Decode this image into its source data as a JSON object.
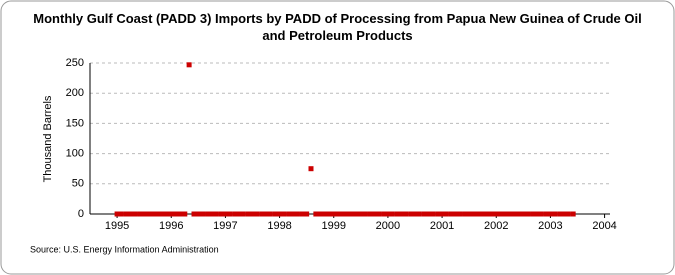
{
  "chart_data": {
    "type": "scatter",
    "title": "Monthly Gulf Coast (PADD 3) Imports by PADD of Processing from Papua New Guinea of Crude Oil and Petroleum Products",
    "y_label": "Thousand Barrels",
    "source": "Source: U.S. Energy Information Administration",
    "series": [
      {
        "name": "Papua New Guinea",
        "color": "#cc0000",
        "x": [
          1995,
          1995.08,
          1995.17,
          1995.25,
          1995.33,
          1995.42,
          1995.5,
          1995.58,
          1995.67,
          1995.75,
          1995.83,
          1995.92,
          1996,
          1996.08,
          1996.17,
          1996.25,
          1996.33,
          1996.42,
          1996.5,
          1996.58,
          1996.67,
          1996.75,
          1996.83,
          1996.92,
          1997,
          1997.08,
          1997.17,
          1997.25,
          1997.33,
          1997.42,
          1997.5,
          1997.58,
          1997.67,
          1997.75,
          1997.83,
          1997.92,
          1998,
          1998.08,
          1998.17,
          1998.25,
          1998.33,
          1998.42,
          1998.5,
          1998.58,
          1998.67,
          1998.75,
          1998.83,
          1998.92,
          1999,
          1999.08,
          1999.17,
          1999.25,
          1999.33,
          1999.42,
          1999.5,
          1999.58,
          1999.67,
          1999.75,
          1999.83,
          1999.92,
          2000,
          2000.08,
          2000.17,
          2000.25,
          2000.33,
          2000.42,
          2000.5,
          2000.58,
          2000.67,
          2000.75,
          2000.83,
          2000.92,
          2001,
          2001.08,
          2001.17,
          2001.25,
          2001.33,
          2001.42,
          2001.5,
          2001.58,
          2001.67,
          2001.75,
          2001.83,
          2001.92,
          2002,
          2002.08,
          2002.17,
          2002.25,
          2002.33,
          2002.42,
          2002.5,
          2002.58,
          2002.67,
          2002.75,
          2002.83,
          2002.92,
          2003,
          2003.08,
          2003.17,
          2003.25,
          2003.33,
          2003.42
        ],
        "values": [
          0,
          0,
          0,
          0,
          0,
          0,
          0,
          0,
          0,
          0,
          0,
          0,
          0,
          0,
          0,
          0,
          247,
          0,
          0,
          0,
          0,
          0,
          0,
          0,
          0,
          0,
          0,
          0,
          0,
          0,
          0,
          0,
          0,
          0,
          0,
          0,
          0,
          0,
          0,
          0,
          0,
          0,
          0,
          75,
          0,
          0,
          0,
          0,
          0,
          0,
          0,
          0,
          0,
          0,
          0,
          0,
          0,
          0,
          0,
          0,
          0,
          0,
          0,
          0,
          0,
          0,
          0,
          0,
          0,
          0,
          0,
          0,
          0,
          0,
          0,
          0,
          0,
          0,
          0,
          0,
          0,
          0,
          0,
          0,
          0,
          0,
          0,
          0,
          0,
          0,
          0,
          0,
          0,
          0,
          0,
          0,
          0,
          0,
          0,
          0,
          0,
          0
        ]
      }
    ],
    "xlim": [
      1994.5,
      2004.1
    ],
    "xticks": [
      1995,
      1996,
      1997,
      1998,
      1999,
      2000,
      2001,
      2002,
      2003,
      2004
    ],
    "ylim": [
      0,
      250
    ],
    "yticks": [
      0,
      50,
      100,
      150,
      200,
      250
    ],
    "grid": true
  }
}
